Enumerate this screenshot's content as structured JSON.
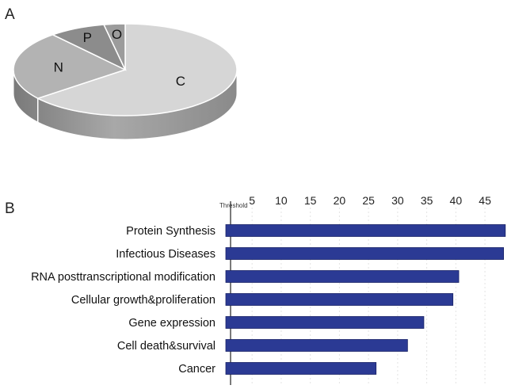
{
  "panels": {
    "a": "A",
    "b": "B"
  },
  "chart_data": [
    {
      "type": "pie",
      "style": "3d",
      "labels": [
        "C",
        "N",
        "P",
        "O"
      ],
      "values": [
        63,
        24,
        8,
        3
      ],
      "colors": {
        "C": "#d6d6d6",
        "N": "#b3b3b3",
        "P": "#8c8c8c",
        "O": "#9c9c9c",
        "edge": "#ffffff",
        "side": "#9a9a9a"
      }
    },
    {
      "type": "bar",
      "orientation": "horizontal",
      "categories": [
        "Protein Synthesis",
        "Infectious Diseases",
        "RNA posttranscriptional modification",
        "Cellular growth&proliferation",
        "Gene expression",
        "Cell death&survival",
        "Cancer"
      ],
      "values": [
        48.5,
        48.2,
        40.5,
        39.5,
        34.5,
        31.7,
        26.3
      ],
      "xticks": [
        5,
        10,
        15,
        20,
        25,
        30,
        35,
        40,
        45
      ],
      "xaxis_position": "top",
      "xlim": [
        1.3,
        48.8
      ],
      "threshold": {
        "label": "Threshold",
        "value": 1.3
      },
      "grid": "vertical dashed",
      "colors": {
        "bar": "#2b3a94",
        "bar_edge": "#1a2366",
        "grid": "#e3e3e3",
        "axis": "#222222"
      }
    }
  ]
}
